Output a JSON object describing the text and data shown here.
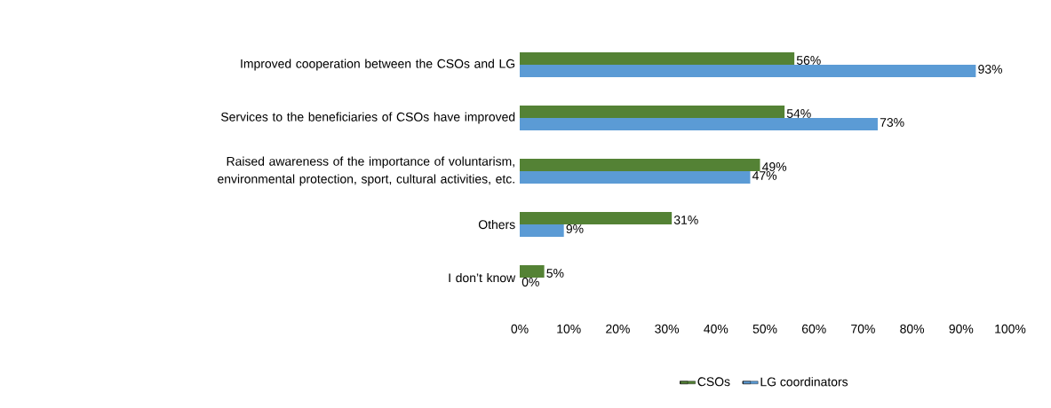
{
  "chart_data": {
    "type": "bar",
    "orientation": "horizontal",
    "categories": [
      "Improved cooperation between the CSOs and LG",
      "Services to the beneficiaries of CSOs have improved",
      "Raised awareness of the importance of voluntarism, environmental protection, sport, cultural activities, etc.",
      "Others",
      "I don’t know"
    ],
    "series": [
      {
        "name": "CSOs",
        "color": "#548235",
        "values": [
          56,
          54,
          49,
          31,
          5
        ],
        "value_labels": [
          "56%",
          "54%",
          "49%",
          "31%",
          "5%"
        ]
      },
      {
        "name": "LG coordinators",
        "color": "#5b9bd5",
        "values": [
          93,
          73,
          47,
          9,
          0
        ],
        "value_labels": [
          "93%",
          "73%",
          "47%",
          "9%",
          "0%"
        ]
      }
    ],
    "xlim": [
      0,
      100
    ],
    "xticks": [
      {
        "value": 0,
        "label": "0%"
      },
      {
        "value": 10,
        "label": "10%"
      },
      {
        "value": 20,
        "label": "20%"
      },
      {
        "value": 30,
        "label": "30%"
      },
      {
        "value": 40,
        "label": "40%"
      },
      {
        "value": 50,
        "label": "50%"
      },
      {
        "value": 60,
        "label": "60%"
      },
      {
        "value": 70,
        "label": "70%"
      },
      {
        "value": 80,
        "label": "80%"
      },
      {
        "value": 90,
        "label": "90%"
      },
      {
        "value": 100,
        "label": "100%"
      }
    ],
    "grid": false,
    "legend": "bottom"
  }
}
